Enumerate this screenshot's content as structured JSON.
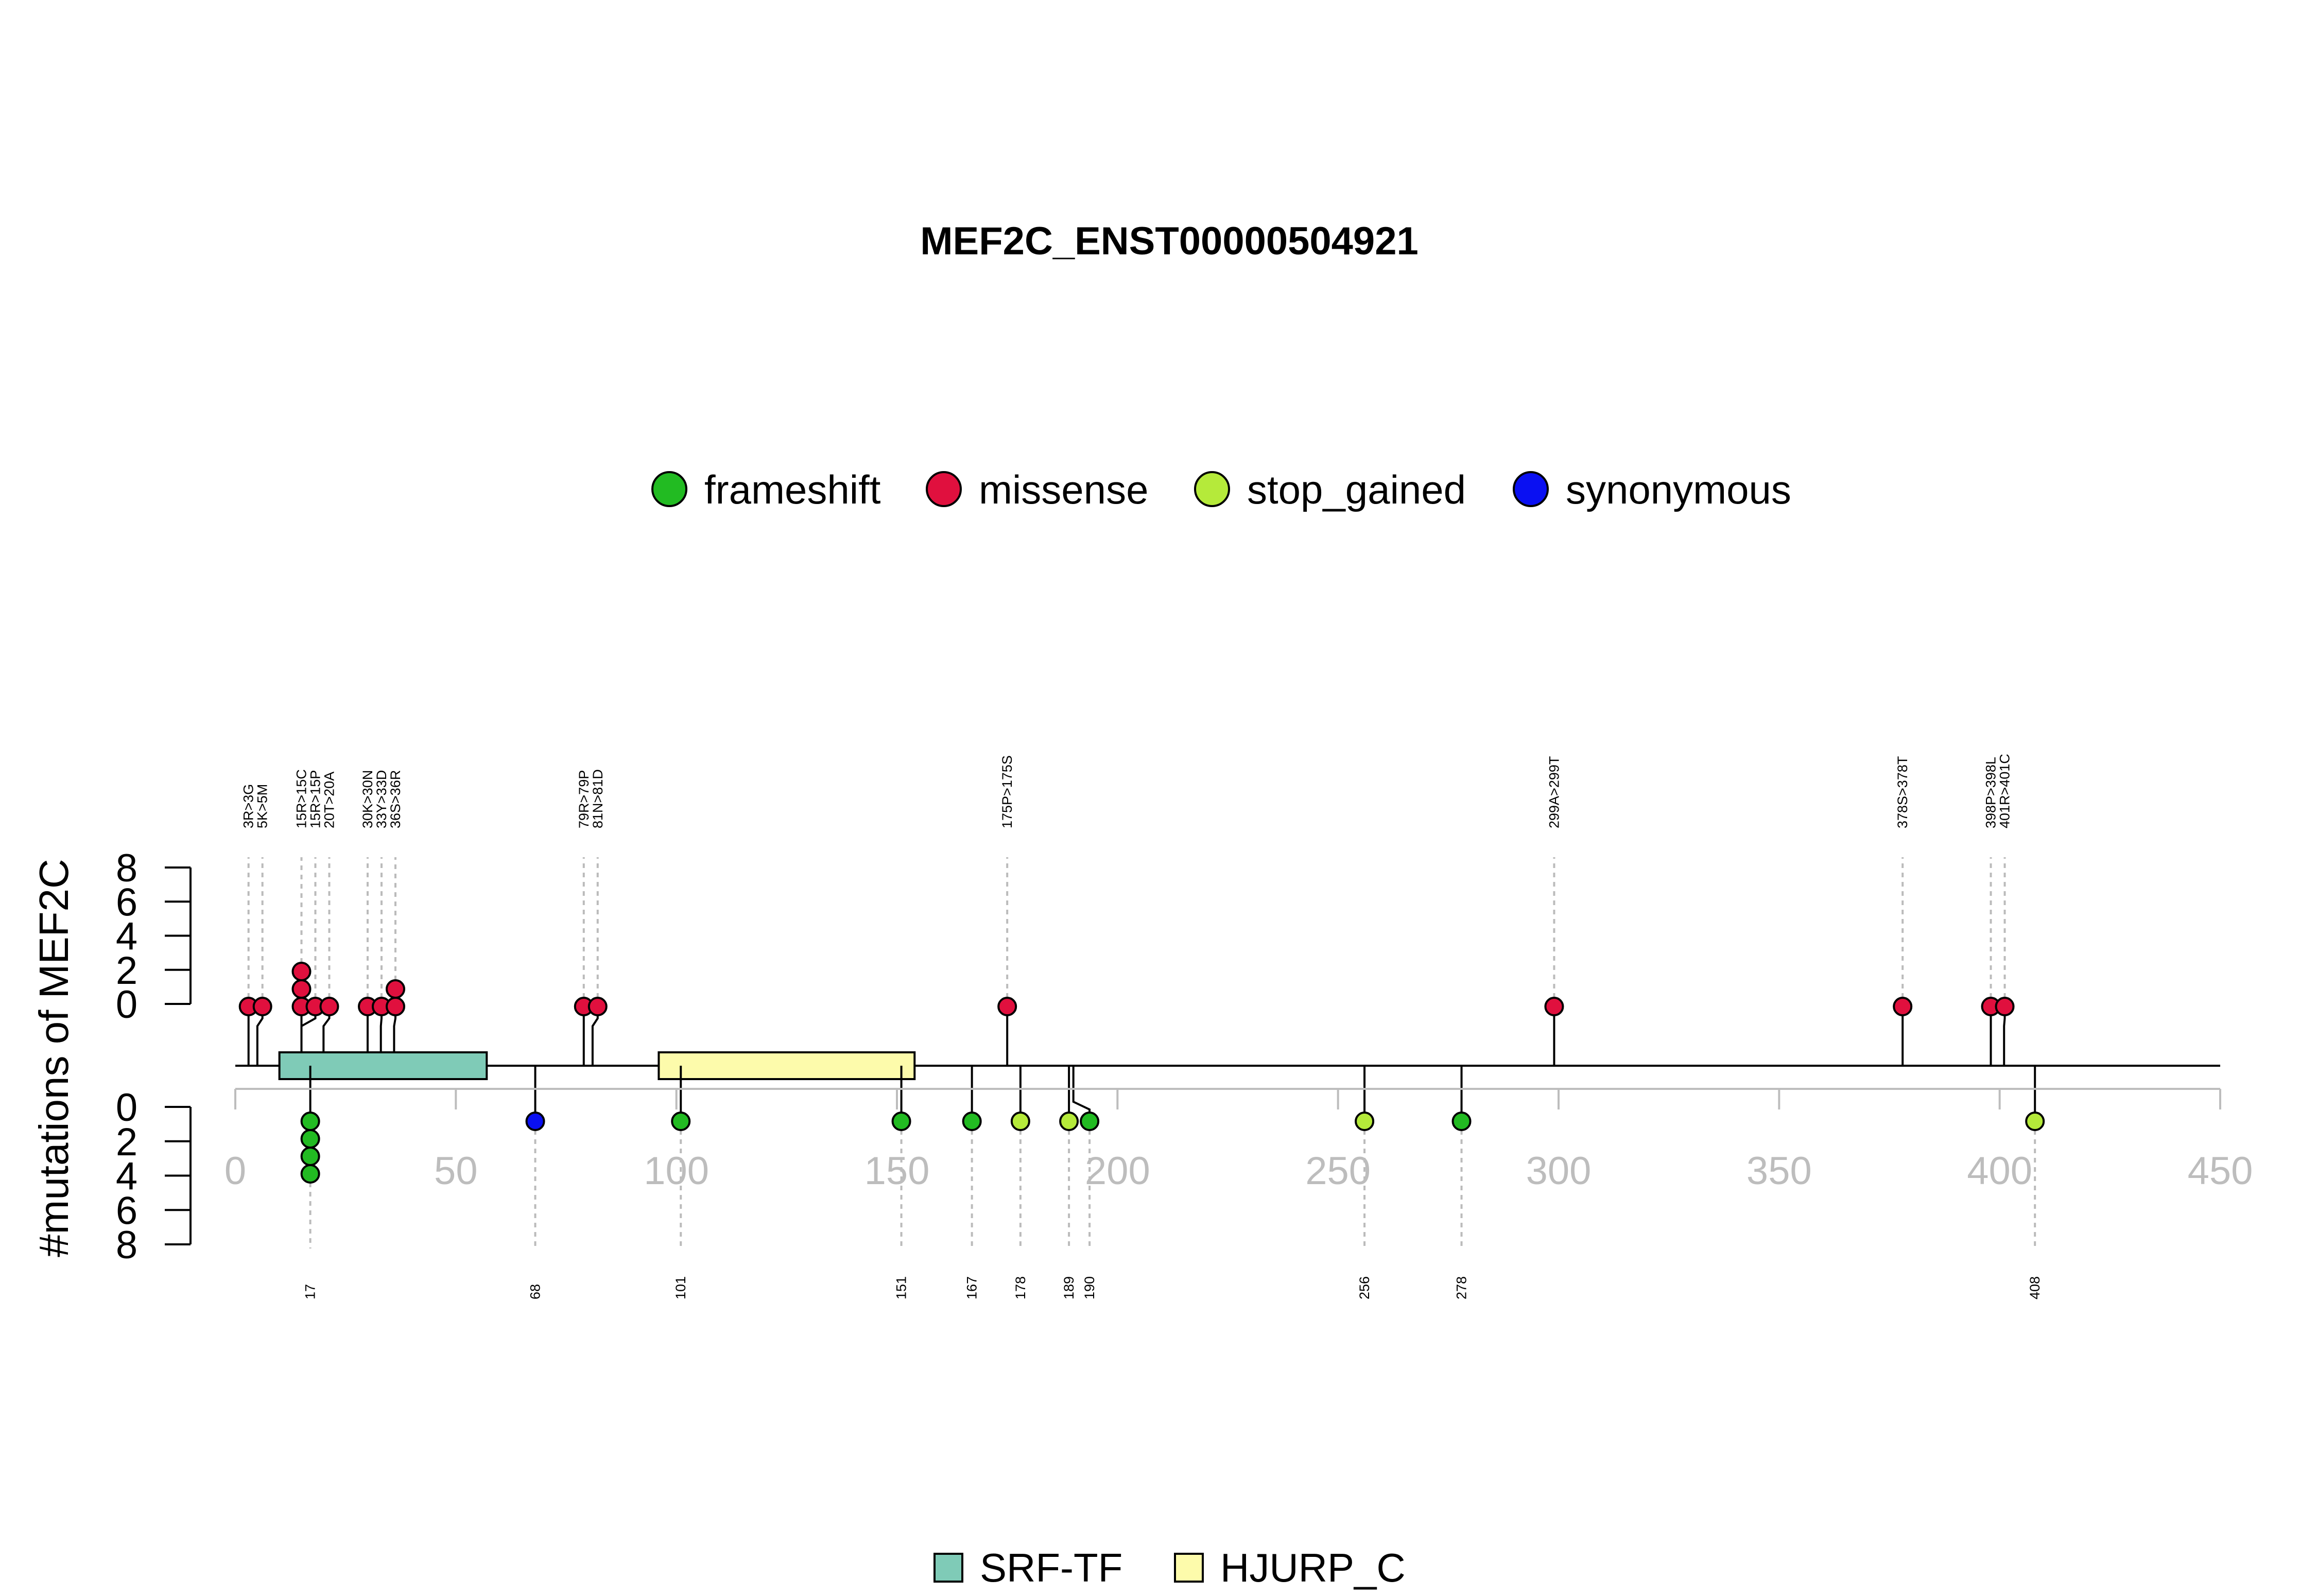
{
  "chart_data": {
    "type": "lollipop",
    "title": "MEF2C_ENST00000504921",
    "ylabel": "#mutations of MEF2C",
    "xlim": [
      0,
      450
    ],
    "xticks": [
      0,
      50,
      100,
      150,
      200,
      250,
      300,
      350,
      400,
      450
    ],
    "yticks": [
      0,
      2,
      4,
      6,
      8
    ],
    "ylim": [
      0,
      8
    ],
    "legend": {
      "placement": "top-center",
      "items": [
        {
          "name": "frameshift",
          "color": "#22bb22"
        },
        {
          "name": "missense",
          "color": "#e0103e"
        },
        {
          "name": "stop_gained",
          "color": "#b5ea3a"
        },
        {
          "name": "synonymous",
          "color": "#0a10f2"
        }
      ]
    },
    "domains": [
      {
        "name": "SRF-TF",
        "start": 10,
        "end": 57,
        "color": "#7fcbb7"
      },
      {
        "name": "HJURP_C",
        "start": 96,
        "end": 154,
        "color": "#fdfbab"
      }
    ],
    "upper_mutations": [
      {
        "pos": 3,
        "label": "3R>3G",
        "count": 1,
        "type": "missense"
      },
      {
        "pos": 5,
        "label": "5K>5M",
        "count": 1,
        "type": "missense"
      },
      {
        "pos": 15,
        "label": "15R>15C",
        "count": 3,
        "type": "missense"
      },
      {
        "pos": 15,
        "label": "15R>15P",
        "count": 1,
        "type": "missense"
      },
      {
        "pos": 20,
        "label": "20T>20A",
        "count": 1,
        "type": "missense"
      },
      {
        "pos": 30,
        "label": "30K>30N",
        "count": 1,
        "type": "missense"
      },
      {
        "pos": 33,
        "label": "33Y>33D",
        "count": 1,
        "type": "missense"
      },
      {
        "pos": 36,
        "label": "36S>36R",
        "count": 2,
        "type": "missense"
      },
      {
        "pos": 79,
        "label": "79R>79P",
        "count": 1,
        "type": "missense"
      },
      {
        "pos": 81,
        "label": "81N>81D",
        "count": 1,
        "type": "missense"
      },
      {
        "pos": 175,
        "label": "175P>175S",
        "count": 1,
        "type": "missense"
      },
      {
        "pos": 299,
        "label": "299A>299T",
        "count": 1,
        "type": "missense"
      },
      {
        "pos": 378,
        "label": "378S>378T",
        "count": 1,
        "type": "missense"
      },
      {
        "pos": 398,
        "label": "398P>398L",
        "count": 1,
        "type": "missense"
      },
      {
        "pos": 401,
        "label": "401R>401C",
        "count": 1,
        "type": "missense"
      }
    ],
    "lower_mutations": [
      {
        "pos": 17,
        "label": "17",
        "count": 4,
        "type": "frameshift"
      },
      {
        "pos": 68,
        "label": "68",
        "count": 1,
        "type": "synonymous"
      },
      {
        "pos": 101,
        "label": "101",
        "count": 1,
        "type": "frameshift"
      },
      {
        "pos": 151,
        "label": "151",
        "count": 1,
        "type": "frameshift"
      },
      {
        "pos": 167,
        "label": "167",
        "count": 1,
        "type": "frameshift"
      },
      {
        "pos": 178,
        "label": "178",
        "count": 1,
        "type": "stop_gained"
      },
      {
        "pos": 189,
        "label": "189",
        "count": 1,
        "type": "stop_gained"
      },
      {
        "pos": 190,
        "label": "190",
        "count": 1,
        "type": "frameshift"
      },
      {
        "pos": 256,
        "label": "256",
        "count": 1,
        "type": "stop_gained"
      },
      {
        "pos": 278,
        "label": "278",
        "count": 1,
        "type": "frameshift"
      },
      {
        "pos": 408,
        "label": "408",
        "count": 1,
        "type": "stop_gained"
      }
    ]
  }
}
